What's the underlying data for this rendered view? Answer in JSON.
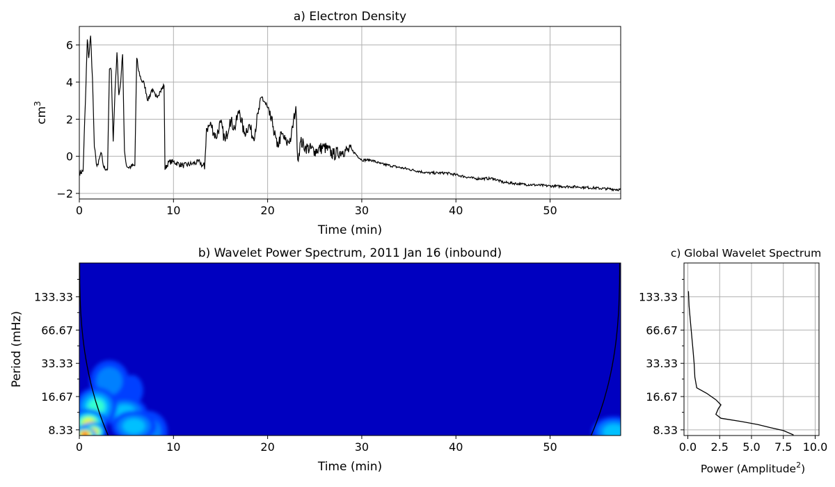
{
  "chart_data": [
    {
      "type": "line",
      "title": "a) Electron Density",
      "xlabel": "Time (min)",
      "ylabel": "cm",
      "ylabel_sup": "3",
      "xlim": [
        0,
        57.5
      ],
      "ylim": [
        -2.3,
        7.0
      ],
      "xticks": [
        "0",
        "10",
        "20",
        "30",
        "40",
        "50"
      ],
      "yticks": [
        "−2",
        "0",
        "2",
        "4",
        "6"
      ],
      "grid": true,
      "series": [
        {
          "color": "#000000",
          "x": [
            0,
            0.4,
            0.7,
            0.85,
            1.0,
            1.2,
            1.4,
            1.6,
            1.8,
            2.0,
            2.3,
            2.6,
            3.0,
            3.2,
            3.4,
            3.6,
            3.8,
            4.0,
            4.2,
            4.4,
            4.6,
            4.8,
            5.0,
            5.2,
            5.5,
            5.9,
            6.1,
            6.3,
            6.6,
            6.9,
            7.3,
            7.7,
            8.1,
            8.6,
            9.0,
            9.1,
            9.5,
            10,
            11,
            12,
            12.8,
            13.3,
            13.5,
            14,
            14.5,
            15,
            15.5,
            16,
            16.5,
            17,
            17.5,
            18,
            18.5,
            19,
            19.4,
            19.8,
            20.2,
            20.6,
            21,
            21.5,
            22,
            22.5,
            23,
            23.2,
            23.5,
            24,
            25,
            26,
            27,
            28,
            29,
            30,
            31,
            32,
            33,
            35,
            37,
            39,
            40,
            42,
            44,
            45,
            47,
            50,
            53,
            56,
            57.5
          ],
          "y": [
            -0.9,
            -0.8,
            3.8,
            6.3,
            5.3,
            6.5,
            4.2,
            0.5,
            -0.4,
            -0.45,
            0.2,
            -0.6,
            -0.7,
            4.7,
            4.6,
            0.8,
            3.6,
            5.6,
            3.3,
            4.0,
            5.5,
            0.3,
            -0.5,
            -0.6,
            -0.55,
            -0.5,
            5.3,
            4.6,
            4.1,
            3.9,
            3.0,
            3.6,
            3.2,
            3.5,
            3.8,
            -0.7,
            -0.3,
            -0.3,
            -0.5,
            -0.4,
            -0.3,
            -0.7,
            1.5,
            1.7,
            1.0,
            1.8,
            0.8,
            2.0,
            1.5,
            2.5,
            1.2,
            1.7,
            1.0,
            2.3,
            3.2,
            2.8,
            2.2,
            1.6,
            0.5,
            1.2,
            0.7,
            1.0,
            2.7,
            -0.2,
            0.8,
            0.5,
            0.3,
            0.5,
            0.1,
            0.3,
            0.3,
            -0.2,
            -0.2,
            -0.4,
            -0.5,
            -0.7,
            -0.9,
            -0.9,
            -1.0,
            -1.2,
            -1.2,
            -1.4,
            -1.5,
            -1.6,
            -1.65,
            -1.75,
            -1.8
          ]
        }
      ]
    },
    {
      "type": "heatmap",
      "title": "b) Wavelet Power Spectrum, 2011 Jan 16 (inbound)",
      "xlabel": "Time (min)",
      "ylabel": "Period (mHz)",
      "xlim": [
        0,
        57.5
      ],
      "xticks": [
        "0",
        "10",
        "20",
        "30",
        "40",
        "50"
      ],
      "yticks": [
        "133.33",
        "66.67",
        "33.33",
        "16.67",
        "8.33"
      ],
      "ylim_freq_mHz": [
        7.4,
        270
      ],
      "background_color": "#0000c0",
      "blobs": [
        {
          "t": 0.6,
          "f": 7.6,
          "level": 9
        },
        {
          "t": 1.4,
          "f": 8.0,
          "level": 7
        },
        {
          "t": 1.0,
          "f": 9.6,
          "level": 6
        },
        {
          "t": 1.8,
          "f": 13.5,
          "level": 4
        },
        {
          "t": 3.2,
          "f": 23.0,
          "level": 2
        },
        {
          "t": 4.8,
          "f": 12.0,
          "level": 3
        },
        {
          "t": 5.8,
          "f": 9.0,
          "level": 3
        },
        {
          "t": 7.3,
          "f": 8.0,
          "level": 2
        },
        {
          "t": 5.6,
          "f": 19.0,
          "level": 1
        },
        {
          "t": 56.8,
          "f": 8.0,
          "level": 3
        }
      ],
      "cone_color": "#000000"
    },
    {
      "type": "line",
      "title": "c) Global Wavelet Spectrum",
      "xlabel": "Power (Amplitude",
      "xlabel_sup": "2",
      "xlabel_close": ")",
      "xlim": [
        -0.3,
        10.3
      ],
      "xticks": [
        "0.0",
        "2.5",
        "5.0",
        "7.5",
        "10.0"
      ],
      "yticks": [
        "133.33",
        "66.67",
        "33.33",
        "16.67",
        "8.33"
      ],
      "grid": true,
      "series": [
        {
          "color": "#000000",
          "power": [
            0.05,
            0.1,
            0.2,
            0.3,
            0.4,
            0.5,
            0.55,
            0.7,
            1.5,
            2.2,
            2.6,
            2.4,
            2.2,
            2.6,
            4.2,
            5.5,
            6.5,
            7.5,
            8.3
          ],
          "freq_mHz": [
            150,
            110,
            80,
            60,
            45,
            33,
            25,
            20,
            17.8,
            15.6,
            14.0,
            13.0,
            11.5,
            10.6,
            9.9,
            9.3,
            8.7,
            8.2,
            7.5
          ]
        }
      ]
    }
  ]
}
